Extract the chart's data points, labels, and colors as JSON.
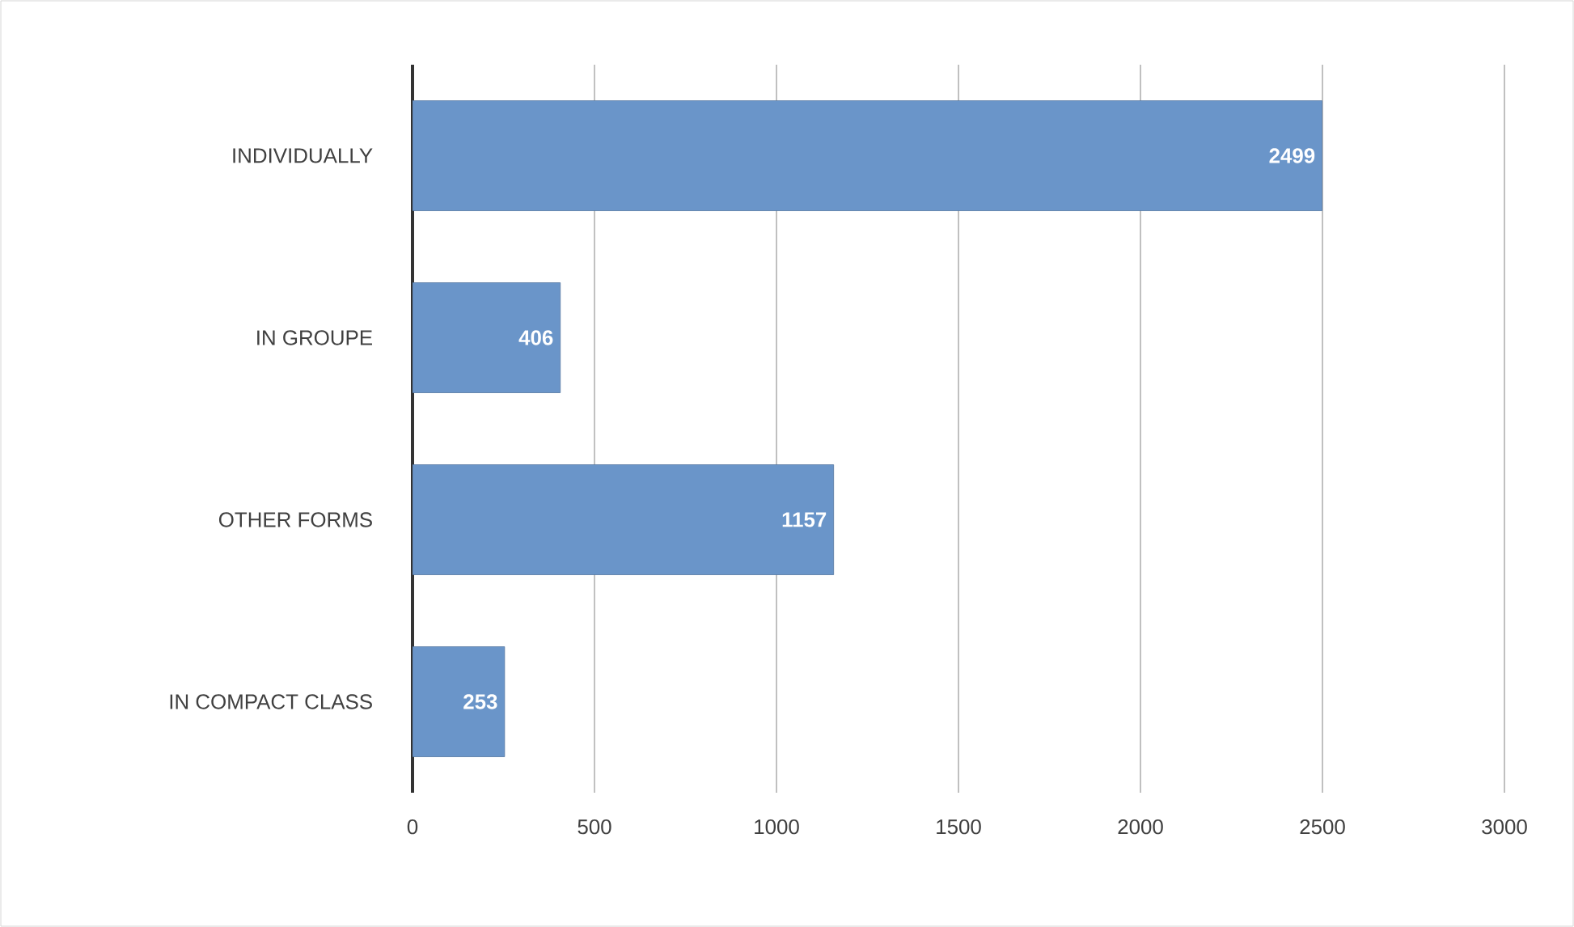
{
  "chart_data": {
    "type": "bar",
    "orientation": "horizontal",
    "categories": [
      "INDIVIDUALLY",
      "IN GROUPE",
      "OTHER FORMS",
      "IN COMPACT CLASS"
    ],
    "values": [
      2499,
      406,
      1157,
      253
    ],
    "color": "#6a95c9",
    "xlim": [
      0,
      3000
    ],
    "xticks": [
      0,
      500,
      1000,
      1500,
      2000,
      2500,
      3000
    ],
    "grid": "x",
    "data_labels": true
  }
}
